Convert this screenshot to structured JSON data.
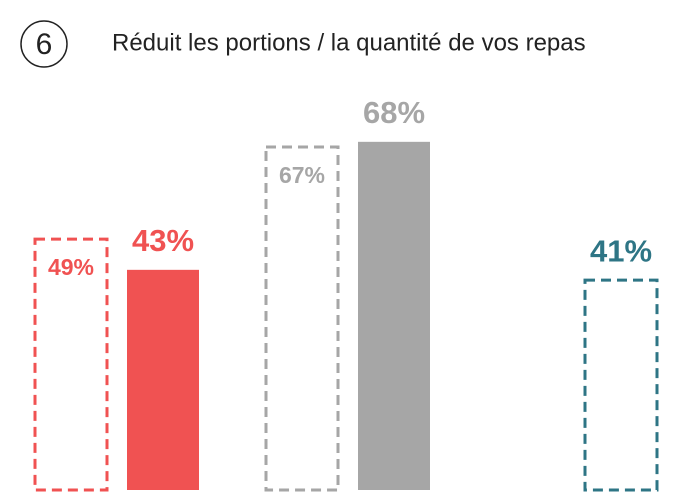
{
  "chart_data": {
    "type": "bar",
    "number": "6",
    "title": "Réduit les portions / la quantité de vos repas",
    "categories": [
      null,
      null,
      null
    ],
    "colors": [
      "#f05252",
      "#a6a6a6",
      "#2e7585"
    ],
    "series": [
      {
        "style": "dashed",
        "values": [
          49,
          67,
          41
        ],
        "value_labels": [
          "49%",
          "67%",
          "41%"
        ]
      },
      {
        "style": "solid",
        "values": [
          43,
          68,
          null
        ],
        "value_labels": [
          "43%",
          "68%",
          null
        ]
      }
    ]
  }
}
